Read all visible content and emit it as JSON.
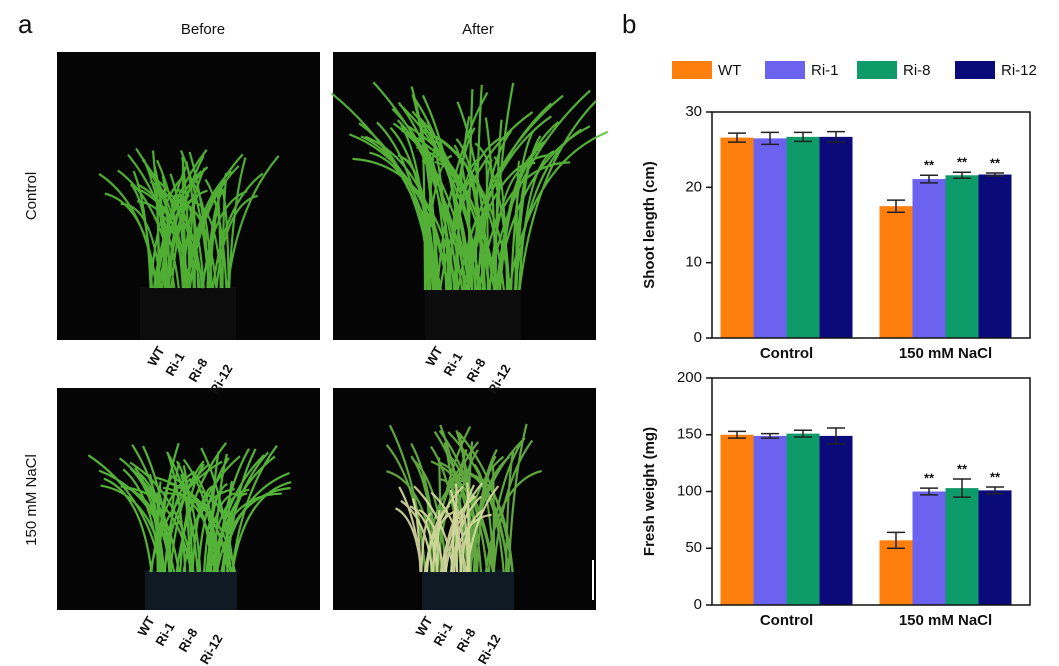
{
  "panel_a": {
    "label": "a",
    "columns": [
      "Before",
      "After"
    ],
    "rows": [
      "Control",
      "150 mM NaCl"
    ],
    "genotypes": [
      "WT",
      "Ri-1",
      "Ri-8",
      "Ri-12"
    ]
  },
  "panel_b": {
    "label": "b"
  },
  "chart_data": [
    {
      "type": "bar",
      "ylabel": "Shoot length (cm)",
      "categories": [
        "Control",
        "150 mM NaCl"
      ],
      "ylim": [
        0,
        30
      ],
      "yticks": [
        0,
        10,
        20,
        30
      ],
      "series": [
        {
          "name": "WT",
          "color": "#ff7f0e",
          "values": [
            26.6,
            17.5
          ],
          "errors": [
            0.6,
            0.8
          ],
          "significance": [
            null,
            null
          ]
        },
        {
          "name": "Ri-1",
          "color": "#6b63f0",
          "values": [
            26.5,
            21.1
          ],
          "errors": [
            0.8,
            0.5
          ],
          "significance": [
            null,
            "**"
          ]
        },
        {
          "name": "Ri-8",
          "color": "#0f9a6a",
          "values": [
            26.7,
            21.6
          ],
          "errors": [
            0.6,
            0.4
          ],
          "significance": [
            null,
            "**"
          ]
        },
        {
          "name": "Ri-12",
          "color": "#0a0a7a",
          "values": [
            26.7,
            21.7
          ],
          "errors": [
            0.7,
            0.2
          ],
          "significance": [
            null,
            "**"
          ]
        }
      ]
    },
    {
      "type": "bar",
      "ylabel": "Fresh weight (mg)",
      "categories": [
        "Control",
        "150 mM NaCl"
      ],
      "ylim": [
        0,
        200
      ],
      "yticks": [
        0,
        50,
        100,
        150,
        200
      ],
      "series": [
        {
          "color": "#ff7f0e",
          "values": [
            150,
            57
          ],
          "errors": [
            3,
            7
          ],
          "significance": [
            null,
            null
          ]
        },
        {
          "color": "#6b63f0",
          "values": [
            149,
            100
          ],
          "errors": [
            2,
            3
          ],
          "significance": [
            null,
            "**"
          ]
        },
        {
          "color": "#0f9a6a",
          "values": [
            151,
            103
          ],
          "errors": [
            3,
            8
          ],
          "significance": [
            null,
            "**"
          ]
        },
        {
          "color": "#0a0a7a",
          "values": [
            149,
            101
          ],
          "errors": [
            7,
            3
          ],
          "significance": [
            null,
            "**"
          ]
        }
      ]
    }
  ]
}
